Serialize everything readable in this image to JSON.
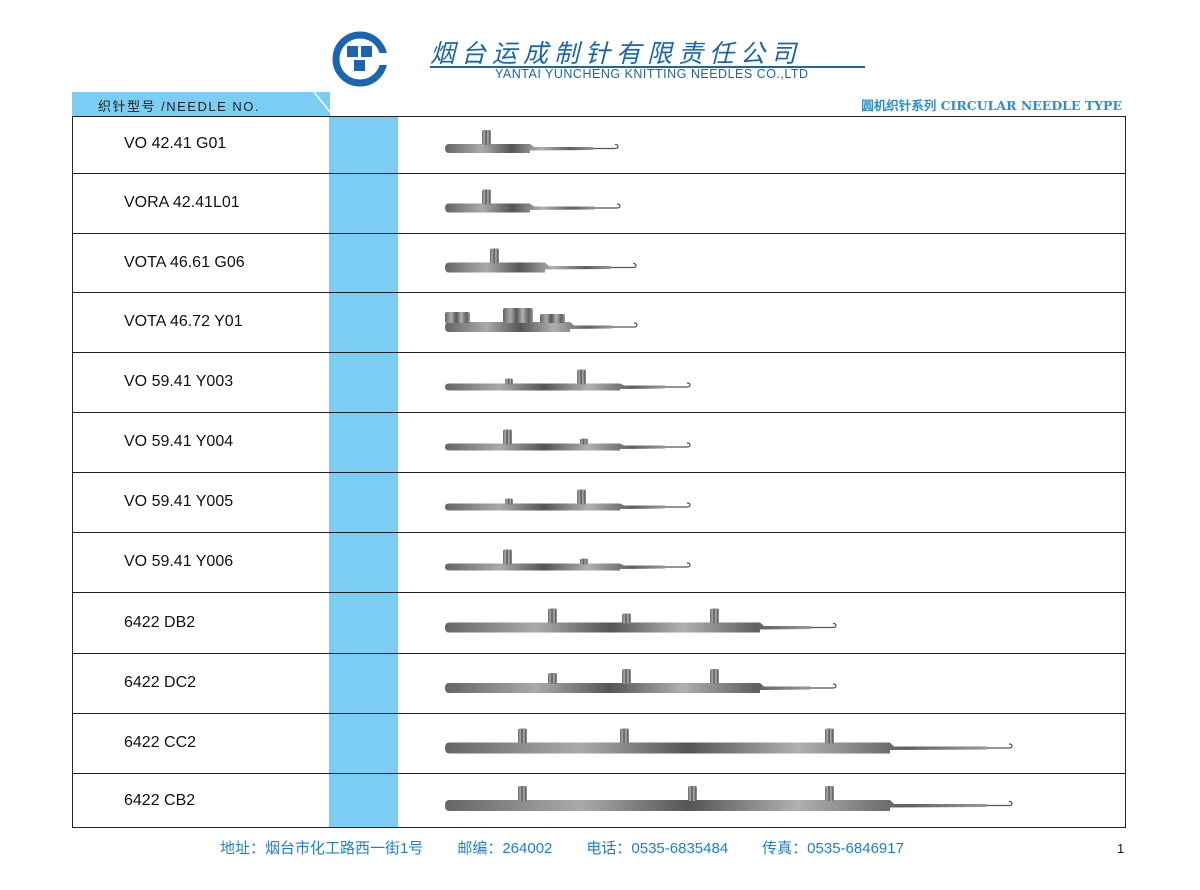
{
  "header": {
    "company_cn": "烟台运成制针有限责任公司",
    "company_en": "YANTAI YUNCHENG KNITTING NEEDLES CO.,LTD",
    "brand_color": "#1a64b0"
  },
  "table_header": {
    "needle_no_label": "织针型号 /NEEDLE NO.",
    "series_label": "圆机织针系列 CIRCULAR NEEDLE TYPE",
    "accent_color": "#7ccdf3"
  },
  "rows": [
    {
      "needle_no": "VO 42.41 G01"
    },
    {
      "needle_no": "VORA 42.41L01"
    },
    {
      "needle_no": "VOTA 46.61 G06"
    },
    {
      "needle_no": "VOTA 46.72 Y01"
    },
    {
      "needle_no": "VO 59.41 Y003"
    },
    {
      "needle_no": "VO 59.41 Y004"
    },
    {
      "needle_no": "VO 59.41 Y005"
    },
    {
      "needle_no": "VO 59.41 Y006"
    },
    {
      "needle_no": "6422 DB2"
    },
    {
      "needle_no": "6422 DC2"
    },
    {
      "needle_no": "6422 CC2"
    },
    {
      "needle_no": "6422 CB2"
    }
  ],
  "footer": {
    "address": "地址：烟台市化工路西一街1号",
    "postcode": "邮编：264002",
    "phone": "电话：0535-6835484",
    "fax": "传真：0535-6846917"
  },
  "page_number": "1"
}
